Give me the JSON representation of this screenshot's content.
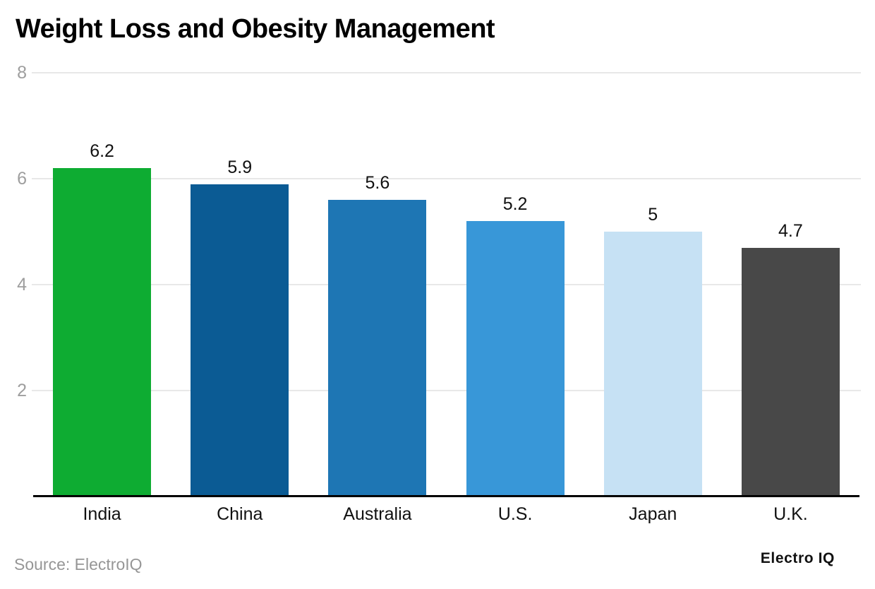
{
  "chart_data": {
    "type": "bar",
    "title": "Weight Loss and Obesity Management",
    "categories": [
      "India",
      "China",
      "Australia",
      "U.S.",
      "Japan",
      "U.K."
    ],
    "values": [
      6.2,
      5.9,
      5.6,
      5.2,
      5,
      4.7
    ],
    "value_labels": [
      "6.2",
      "5.9",
      "5.6",
      "5.2",
      "5",
      "4.7"
    ],
    "bar_colors": [
      "#0EAC32",
      "#0B5B94",
      "#1E76B4",
      "#3897D8",
      "#C6E1F4",
      "#484848"
    ],
    "xlabel": "",
    "ylabel": "",
    "ylim": [
      0,
      8
    ],
    "yticks": [
      2,
      4,
      6,
      8
    ],
    "grid": "horizontal-only",
    "legend": "none"
  },
  "footer": {
    "source": "Source: ElectroIQ",
    "brand": "Electro IQ"
  },
  "colors": {
    "background": "#FFFFFF",
    "grid_line": "#E8E8E8",
    "axis_line": "#000000",
    "tick_label": "#9E9E9E",
    "label_text": "#111111",
    "source_text": "#969696",
    "title_text": "#000000"
  }
}
